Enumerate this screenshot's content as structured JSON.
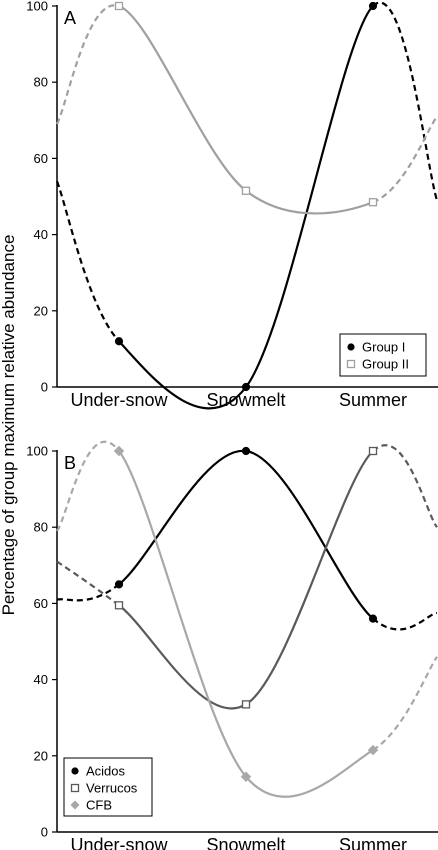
{
  "ylabel": "Percentage of group maximum relative abundance",
  "chart_data": [
    {
      "type": "line",
      "panel_label": "A",
      "categories": [
        "Under-snow",
        "Snowmelt",
        "Summer"
      ],
      "ylim": [
        0,
        100
      ],
      "yticks": [
        0,
        20,
        40,
        60,
        80,
        100
      ],
      "legend_position": "bottom-right",
      "series": [
        {
          "name": "Group I",
          "color": "#000000",
          "marker": "filled-circle",
          "values": [
            12,
            0,
            100
          ],
          "edge_left": 54,
          "edge_right": 49
        },
        {
          "name": "Group II",
          "color": "#a0a0a0",
          "marker": "open-square",
          "values": [
            100,
            51.5,
            48.5
          ],
          "edge_left": 69,
          "edge_right": 71
        }
      ]
    },
    {
      "type": "line",
      "panel_label": "B",
      "categories": [
        "Under-snow",
        "Snowmelt",
        "Summer"
      ],
      "ylim": [
        0,
        100
      ],
      "yticks": [
        0,
        20,
        40,
        60,
        80,
        100
      ],
      "legend_position": "bottom-left",
      "series": [
        {
          "name": "Acidos",
          "color": "#000000",
          "marker": "filled-circle",
          "values": [
            65,
            100,
            56
          ],
          "edge_left": 61,
          "edge_right": 57.5
        },
        {
          "name": "Verrucos",
          "color": "#5a5a5a",
          "marker": "open-square",
          "values": [
            59.5,
            33.5,
            100
          ],
          "edge_left": 71,
          "edge_right": 80
        },
        {
          "name": "CFB",
          "color": "#a8a8a8",
          "marker": "filled-diamond",
          "values": [
            100,
            14.5,
            21.5
          ],
          "edge_left": 79,
          "edge_right": 46
        }
      ]
    }
  ]
}
